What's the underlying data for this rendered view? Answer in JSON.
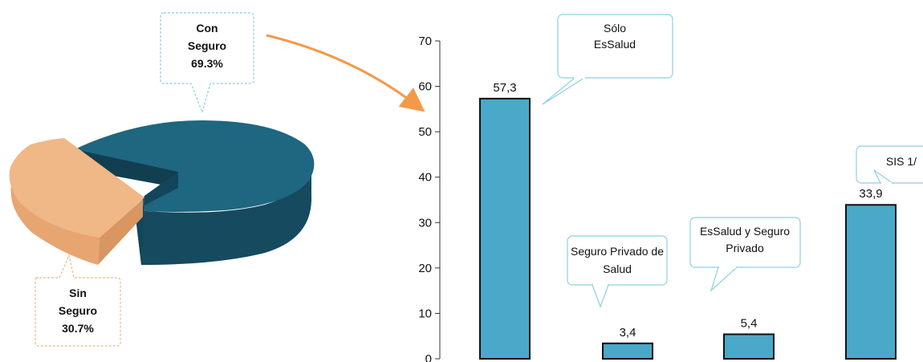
{
  "chart_data": [
    {
      "type": "pie",
      "title": "",
      "slices": [
        {
          "label_lines": [
            "Con",
            "Seguro"
          ],
          "value_text": "69.3%",
          "value": 69.3,
          "color": "#1f6680"
        },
        {
          "label_lines": [
            "Sin",
            "Seguro"
          ],
          "value_text": "30.7%",
          "value": 30.7,
          "color": "#f0b787"
        }
      ]
    },
    {
      "type": "bar",
      "title": "",
      "xlabel": "",
      "ylabel": "",
      "ylim": [
        0,
        70
      ],
      "yticks": [
        "0",
        "10",
        "20",
        "30",
        "40",
        "50",
        "60",
        "70"
      ],
      "grid": false,
      "bar_color": "#4aa8c8",
      "categories": [
        "Sólo EsSalud",
        "Seguro Privado de Salud",
        "EsSalud y Seguro Privado",
        "SIS 1/"
      ],
      "category_label_lines": [
        [
          "Sólo",
          "EsSalud"
        ],
        [
          "Seguro Privado de",
          "Salud"
        ],
        [
          "EsSalud y Seguro",
          "Privado"
        ],
        [
          "SIS  1/"
        ]
      ],
      "values": [
        57.3,
        3.4,
        5.4,
        33.9
      ],
      "value_labels": [
        "57,3",
        "3,4",
        "5,4",
        "33,9"
      ]
    }
  ],
  "colors": {
    "callout_border_blue": "#8ecfe3",
    "callout_border_orange": "#f0b787",
    "arrow": "#f29a4a",
    "axis": "#333333"
  }
}
